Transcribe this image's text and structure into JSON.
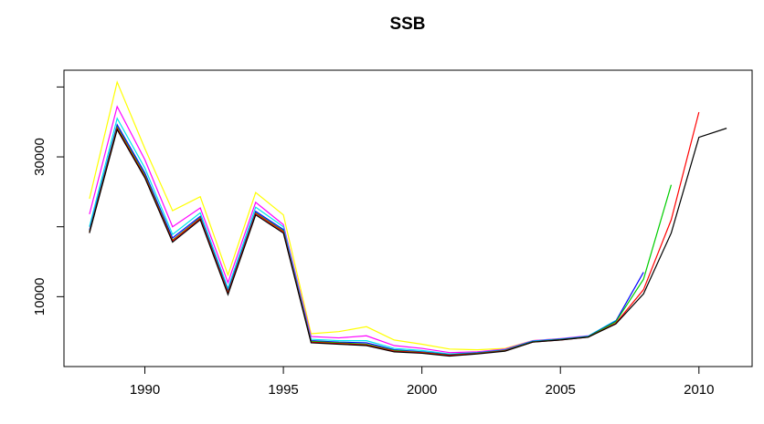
{
  "chart_data": {
    "type": "line",
    "title": "SSB",
    "x": [
      1988,
      1989,
      1990,
      1991,
      1992,
      1993,
      1994,
      1995,
      1996,
      1997,
      1998,
      1999,
      2000,
      2001,
      2002,
      2003,
      2004,
      2005,
      2006,
      2007,
      2008,
      2009,
      2010,
      2011
    ],
    "series": [
      {
        "color": "#000000",
        "values": [
          19100,
          33900,
          27000,
          17800,
          21000,
          10300,
          21700,
          19100,
          3400,
          3200,
          3000,
          2100,
          1900,
          1500,
          1800,
          2200,
          3500,
          3800,
          4200,
          6100,
          10400,
          19100,
          32800,
          34100
        ]
      },
      {
        "color": "#ff0000",
        "values": [
          19200,
          34100,
          27200,
          18000,
          21200,
          10500,
          21900,
          19300,
          3500,
          3300,
          3100,
          2200,
          2000,
          1600,
          1850,
          2250,
          3500,
          3800,
          4200,
          6200,
          11000,
          21000,
          36400,
          null
        ]
      },
      {
        "color": "#00cd00",
        "values": [
          19300,
          34300,
          27400,
          18100,
          21300,
          10600,
          22000,
          19400,
          3600,
          3400,
          3200,
          2300,
          2050,
          1650,
          1900,
          2300,
          3550,
          3850,
          4250,
          6400,
          12500,
          26000,
          null,
          null
        ]
      },
      {
        "color": "#0000ff",
        "values": [
          19500,
          34600,
          27700,
          18400,
          21500,
          10800,
          22200,
          19600,
          3700,
          3500,
          3400,
          2400,
          2100,
          1700,
          1950,
          2350,
          3600,
          3900,
          4300,
          6500,
          13500,
          null,
          null,
          null
        ]
      },
      {
        "color": "#00e5ee",
        "values": [
          20000,
          35500,
          28400,
          18900,
          22000,
          11200,
          22800,
          20000,
          3900,
          3700,
          3700,
          2600,
          2300,
          1800,
          2000,
          2400,
          3650,
          3950,
          4350,
          6600,
          null,
          null,
          null,
          null
        ]
      },
      {
        "color": "#ff00ff",
        "values": [
          21800,
          37200,
          29600,
          20000,
          22700,
          12000,
          23500,
          20300,
          4300,
          4100,
          4400,
          3000,
          2600,
          2000,
          2100,
          2500,
          3700,
          4000,
          4400,
          null,
          null,
          null,
          null,
          null
        ]
      },
      {
        "color": "#ffff00",
        "values": [
          24000,
          40700,
          31200,
          22300,
          24300,
          13100,
          24900,
          21700,
          4700,
          5000,
          5700,
          3800,
          3200,
          2500,
          2400,
          2600,
          3700,
          4000,
          null,
          null,
          null,
          null,
          null,
          null
        ]
      }
    ],
    "xlim": [
      1987.08,
      2011.92
    ],
    "xticks": [
      1990,
      1995,
      2000,
      2005,
      2010
    ],
    "ylim": [
      0,
      42400
    ],
    "yticks": [
      10000,
      30000
    ],
    "yticks_unlabeled": [
      20000,
      40000
    ]
  }
}
